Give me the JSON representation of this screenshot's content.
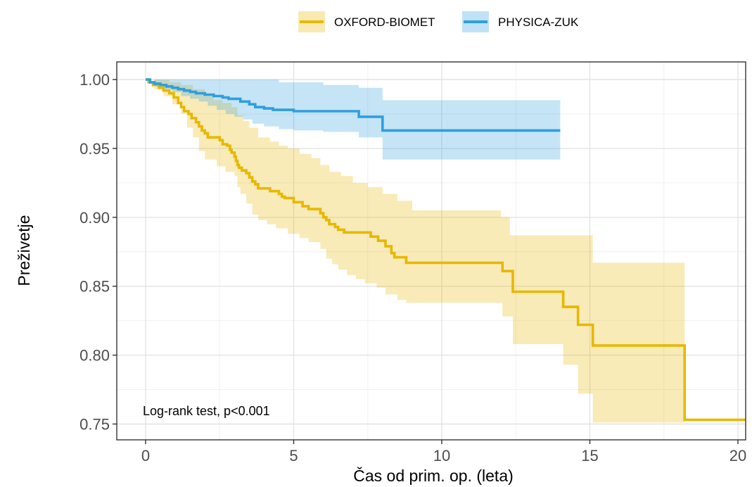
{
  "chart_data": {
    "type": "line",
    "subtype": "kaplan-meier step curves with confidence bands",
    "xlabel": "Čas od prim. op. (leta)",
    "ylabel": "Preživetje",
    "xlim": [
      -1,
      20.5
    ],
    "ylim": [
      0.744,
      1.012
    ],
    "x_ticks": [
      0,
      5,
      10,
      15,
      20
    ],
    "x_tick_labels": [
      "0",
      "5",
      "10",
      "15",
      "20"
    ],
    "y_ticks": [
      0.75,
      0.8,
      0.85,
      0.9,
      0.95,
      1.0
    ],
    "y_tick_labels": [
      "0.75",
      "0.80",
      "0.85",
      "0.90",
      "0.95",
      "1.00"
    ],
    "grid": true,
    "legend_position": "top",
    "annotation": "Log-rank test, p<0.001",
    "series": [
      {
        "name": "OXFORD-BIOMET",
        "color": "#E7B800",
        "steps": [
          [
            0,
            1.0
          ],
          [
            0.1,
            0.998
          ],
          [
            0.25,
            0.996
          ],
          [
            0.45,
            0.994
          ],
          [
            0.6,
            0.992
          ],
          [
            0.8,
            0.99
          ],
          [
            0.95,
            0.987
          ],
          [
            1.1,
            0.983
          ],
          [
            1.2,
            0.98
          ],
          [
            1.3,
            0.977
          ],
          [
            1.45,
            0.975
          ],
          [
            1.55,
            0.972
          ],
          [
            1.7,
            0.969
          ],
          [
            1.8,
            0.966
          ],
          [
            1.9,
            0.963
          ],
          [
            2.0,
            0.961
          ],
          [
            2.1,
            0.958
          ],
          [
            2.5,
            0.956
          ],
          [
            2.6,
            0.953
          ],
          [
            2.75,
            0.952
          ],
          [
            2.85,
            0.949
          ],
          [
            2.9,
            0.947
          ],
          [
            3.0,
            0.944
          ],
          [
            3.05,
            0.941
          ],
          [
            3.1,
            0.938
          ],
          [
            3.15,
            0.936
          ],
          [
            3.25,
            0.934
          ],
          [
            3.4,
            0.932
          ],
          [
            3.5,
            0.929
          ],
          [
            3.6,
            0.926
          ],
          [
            3.7,
            0.924
          ],
          [
            3.8,
            0.921
          ],
          [
            4.2,
            0.919
          ],
          [
            4.5,
            0.917
          ],
          [
            4.6,
            0.915
          ],
          [
            4.7,
            0.914
          ],
          [
            5.0,
            0.911
          ],
          [
            5.3,
            0.908
          ],
          [
            5.5,
            0.906
          ],
          [
            5.9,
            0.903
          ],
          [
            6.0,
            0.9
          ],
          [
            6.1,
            0.898
          ],
          [
            6.2,
            0.895
          ],
          [
            6.4,
            0.893
          ],
          [
            6.5,
            0.891
          ],
          [
            6.7,
            0.889
          ],
          [
            7.2,
            0.889
          ],
          [
            7.6,
            0.886
          ],
          [
            7.85,
            0.883
          ],
          [
            8.1,
            0.879
          ],
          [
            8.3,
            0.874
          ],
          [
            8.4,
            0.871
          ],
          [
            8.8,
            0.867
          ],
          [
            12.05,
            0.861
          ],
          [
            12.4,
            0.846
          ],
          [
            14.1,
            0.835
          ],
          [
            14.6,
            0.822
          ],
          [
            15.1,
            0.807
          ],
          [
            18.2,
            0.753
          ],
          [
            20.5,
            0.753
          ]
        ],
        "ci_upper": [
          [
            0,
            1.0
          ],
          [
            0.4,
            1.0
          ],
          [
            0.8,
            0.998
          ],
          [
            1.2,
            0.996
          ],
          [
            1.6,
            0.993
          ],
          [
            2.0,
            0.988
          ],
          [
            2.3,
            0.985
          ],
          [
            2.6,
            0.983
          ],
          [
            2.9,
            0.98
          ],
          [
            3.1,
            0.974
          ],
          [
            3.3,
            0.97
          ],
          [
            3.5,
            0.965
          ],
          [
            3.8,
            0.958
          ],
          [
            4.2,
            0.955
          ],
          [
            4.5,
            0.952
          ],
          [
            4.8,
            0.95
          ],
          [
            5.2,
            0.946
          ],
          [
            5.6,
            0.943
          ],
          [
            5.9,
            0.938
          ],
          [
            6.2,
            0.933
          ],
          [
            6.6,
            0.93
          ],
          [
            7.0,
            0.925
          ],
          [
            7.5,
            0.922
          ],
          [
            8.0,
            0.917
          ],
          [
            8.5,
            0.912
          ],
          [
            9.0,
            0.905
          ],
          [
            12.0,
            0.9
          ],
          [
            12.3,
            0.887
          ],
          [
            14.2,
            0.887
          ],
          [
            15.1,
            0.867
          ],
          [
            18.2,
            0.867
          ]
        ],
        "ci_lower": [
          [
            0,
            1.0
          ],
          [
            0.3,
            0.993
          ],
          [
            0.6,
            0.988
          ],
          [
            0.9,
            0.982
          ],
          [
            1.2,
            0.975
          ],
          [
            1.4,
            0.965
          ],
          [
            1.6,
            0.958
          ],
          [
            1.8,
            0.948
          ],
          [
            2.0,
            0.942
          ],
          [
            2.4,
            0.937
          ],
          [
            2.7,
            0.933
          ],
          [
            3.0,
            0.93
          ],
          [
            3.1,
            0.922
          ],
          [
            3.2,
            0.917
          ],
          [
            3.4,
            0.91
          ],
          [
            3.6,
            0.902
          ],
          [
            3.8,
            0.898
          ],
          [
            4.1,
            0.895
          ],
          [
            4.4,
            0.892
          ],
          [
            4.8,
            0.888
          ],
          [
            5.2,
            0.885
          ],
          [
            5.5,
            0.882
          ],
          [
            5.9,
            0.877
          ],
          [
            6.1,
            0.87
          ],
          [
            6.3,
            0.866
          ],
          [
            6.5,
            0.862
          ],
          [
            6.8,
            0.858
          ],
          [
            7.1,
            0.855
          ],
          [
            7.4,
            0.852
          ],
          [
            7.8,
            0.849
          ],
          [
            8.1,
            0.844
          ],
          [
            8.5,
            0.84
          ],
          [
            8.8,
            0.838
          ],
          [
            12.0,
            0.838
          ],
          [
            12.05,
            0.828
          ],
          [
            12.4,
            0.808
          ],
          [
            14.1,
            0.793
          ],
          [
            14.6,
            0.772
          ],
          [
            15.1,
            0.751
          ],
          [
            18.2,
            0.751
          ]
        ]
      },
      {
        "name": "PHYSICA-ZUK",
        "color": "#2E9FDF",
        "steps": [
          [
            0,
            1.0
          ],
          [
            0.15,
            0.998
          ],
          [
            0.3,
            0.997
          ],
          [
            0.5,
            0.996
          ],
          [
            0.7,
            0.995
          ],
          [
            0.9,
            0.994
          ],
          [
            1.1,
            0.993
          ],
          [
            1.3,
            0.992
          ],
          [
            1.5,
            0.991
          ],
          [
            1.7,
            0.99
          ],
          [
            2.0,
            0.989
          ],
          [
            2.3,
            0.988
          ],
          [
            2.6,
            0.987
          ],
          [
            2.8,
            0.986
          ],
          [
            3.2,
            0.984
          ],
          [
            3.5,
            0.982
          ],
          [
            3.7,
            0.98
          ],
          [
            4.0,
            0.979
          ],
          [
            4.3,
            0.978
          ],
          [
            5.0,
            0.977
          ],
          [
            7.2,
            0.973
          ],
          [
            8.0,
            0.963
          ],
          [
            14.0,
            0.963
          ]
        ],
        "ci_upper": [
          [
            0,
            1.0
          ],
          [
            4.0,
            1.0
          ],
          [
            4.5,
            0.998
          ],
          [
            6.0,
            0.996
          ],
          [
            7.2,
            0.994
          ],
          [
            8.0,
            0.985
          ],
          [
            14.0,
            0.985
          ]
        ],
        "ci_lower": [
          [
            0,
            1.0
          ],
          [
            0.3,
            0.996
          ],
          [
            0.6,
            0.993
          ],
          [
            0.9,
            0.991
          ],
          [
            1.2,
            0.988
          ],
          [
            1.5,
            0.986
          ],
          [
            1.8,
            0.984
          ],
          [
            2.1,
            0.981
          ],
          [
            2.4,
            0.978
          ],
          [
            2.7,
            0.975
          ],
          [
            3.0,
            0.973
          ],
          [
            3.3,
            0.971
          ],
          [
            3.6,
            0.968
          ],
          [
            4.0,
            0.966
          ],
          [
            4.5,
            0.964
          ],
          [
            5.0,
            0.963
          ],
          [
            6.0,
            0.962
          ],
          [
            7.2,
            0.958
          ],
          [
            8.0,
            0.942
          ],
          [
            14.0,
            0.942
          ]
        ]
      }
    ]
  }
}
